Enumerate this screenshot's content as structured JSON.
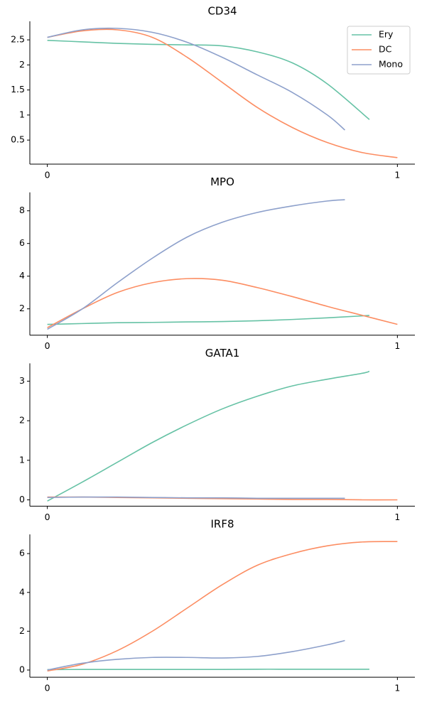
{
  "chart_data": [
    {
      "type": "line",
      "title": "CD34",
      "xlim": [
        -0.05,
        1.05
      ],
      "xticks": [
        0,
        1
      ],
      "ylim": [
        0.02,
        2.87
      ],
      "yticks": [
        0.5,
        1.0,
        1.5,
        2.0,
        2.5
      ],
      "legend": "upper right",
      "series": [
        {
          "name": "Ery",
          "color": "#66c2a5",
          "x": [
            0,
            0.1,
            0.2,
            0.3,
            0.4,
            0.5,
            0.6,
            0.7,
            0.8,
            0.92
          ],
          "values": [
            2.49,
            2.46,
            2.43,
            2.41,
            2.4,
            2.38,
            2.26,
            2.04,
            1.62,
            0.91
          ]
        },
        {
          "name": "DC",
          "color": "#fc8d62",
          "x": [
            0,
            0.1,
            0.2,
            0.3,
            0.4,
            0.5,
            0.6,
            0.7,
            0.8,
            0.9,
            1.0
          ],
          "values": [
            2.55,
            2.68,
            2.7,
            2.55,
            2.15,
            1.65,
            1.15,
            0.75,
            0.45,
            0.25,
            0.15
          ]
        },
        {
          "name": "Mono",
          "color": "#8da0cb",
          "x": [
            0,
            0.1,
            0.2,
            0.3,
            0.4,
            0.5,
            0.6,
            0.7,
            0.8,
            0.85
          ],
          "values": [
            2.55,
            2.7,
            2.73,
            2.65,
            2.45,
            2.15,
            1.8,
            1.45,
            1.0,
            0.7
          ]
        }
      ]
    },
    {
      "type": "line",
      "title": "MPO",
      "xlim": [
        -0.05,
        1.05
      ],
      "xticks": [
        0,
        1
      ],
      "ylim": [
        0.39,
        9.13
      ],
      "yticks": [
        2,
        4,
        6,
        8
      ],
      "series": [
        {
          "color": "#66c2a5",
          "x": [
            0,
            0.1,
            0.2,
            0.3,
            0.4,
            0.5,
            0.6,
            0.7,
            0.8,
            0.9,
            0.92
          ],
          "values": [
            1.05,
            1.1,
            1.15,
            1.17,
            1.2,
            1.22,
            1.27,
            1.35,
            1.45,
            1.57,
            1.6
          ]
        },
        {
          "color": "#fc8d62",
          "x": [
            0,
            0.1,
            0.2,
            0.3,
            0.4,
            0.5,
            0.6,
            0.7,
            0.8,
            0.9,
            1.0
          ],
          "values": [
            0.85,
            2.0,
            3.0,
            3.6,
            3.85,
            3.75,
            3.3,
            2.75,
            2.15,
            1.6,
            1.05
          ]
        },
        {
          "color": "#8da0cb",
          "x": [
            0,
            0.1,
            0.2,
            0.3,
            0.4,
            0.5,
            0.6,
            0.7,
            0.8,
            0.85
          ],
          "values": [
            0.75,
            2.0,
            3.6,
            5.1,
            6.4,
            7.3,
            7.9,
            8.3,
            8.6,
            8.68
          ]
        }
      ]
    },
    {
      "type": "line",
      "title": "GATA1",
      "xlim": [
        -0.05,
        1.05
      ],
      "xticks": [
        0,
        1
      ],
      "ylim": [
        -0.16,
        3.45
      ],
      "yticks": [
        0,
        1,
        2,
        3
      ],
      "series": [
        {
          "color": "#66c2a5",
          "x": [
            0,
            0.1,
            0.2,
            0.3,
            0.4,
            0.5,
            0.6,
            0.7,
            0.8,
            0.9,
            0.92
          ],
          "values": [
            -0.03,
            0.45,
            0.95,
            1.45,
            1.9,
            2.3,
            2.62,
            2.88,
            3.05,
            3.2,
            3.25
          ]
        },
        {
          "color": "#fc8d62",
          "x": [
            0,
            0.1,
            0.2,
            0.3,
            0.4,
            0.5,
            0.6,
            0.7,
            0.8,
            0.9,
            1.0
          ],
          "values": [
            0.07,
            0.07,
            0.06,
            0.05,
            0.04,
            0.03,
            0.02,
            0.01,
            0.01,
            0.0,
            0.0
          ]
        },
        {
          "color": "#8da0cb",
          "x": [
            0,
            0.1,
            0.2,
            0.3,
            0.4,
            0.5,
            0.6,
            0.7,
            0.8,
            0.85
          ],
          "values": [
            0.06,
            0.07,
            0.07,
            0.06,
            0.05,
            0.05,
            0.04,
            0.04,
            0.04,
            0.04
          ]
        }
      ]
    },
    {
      "type": "line",
      "title": "IRF8",
      "xlim": [
        -0.05,
        1.05
      ],
      "xticks": [
        0,
        1
      ],
      "ylim": [
        -0.37,
        6.99
      ],
      "yticks": [
        0,
        2,
        4,
        6
      ],
      "series": [
        {
          "color": "#66c2a5",
          "x": [
            0,
            0.1,
            0.2,
            0.3,
            0.4,
            0.5,
            0.6,
            0.7,
            0.8,
            0.9,
            0.92
          ],
          "values": [
            0.02,
            0.03,
            0.03,
            0.03,
            0.03,
            0.03,
            0.04,
            0.04,
            0.04,
            0.04,
            0.04
          ]
        },
        {
          "color": "#fc8d62",
          "x": [
            0,
            0.1,
            0.2,
            0.3,
            0.4,
            0.5,
            0.6,
            0.7,
            0.8,
            0.9,
            1.0
          ],
          "values": [
            -0.05,
            0.3,
            1.0,
            2.0,
            3.2,
            4.4,
            5.4,
            6.0,
            6.4,
            6.6,
            6.62
          ]
        },
        {
          "color": "#8da0cb",
          "x": [
            0,
            0.1,
            0.2,
            0.3,
            0.4,
            0.5,
            0.6,
            0.7,
            0.8,
            0.85
          ],
          "values": [
            0.0,
            0.35,
            0.55,
            0.65,
            0.65,
            0.62,
            0.7,
            0.95,
            1.3,
            1.52
          ]
        }
      ]
    }
  ]
}
